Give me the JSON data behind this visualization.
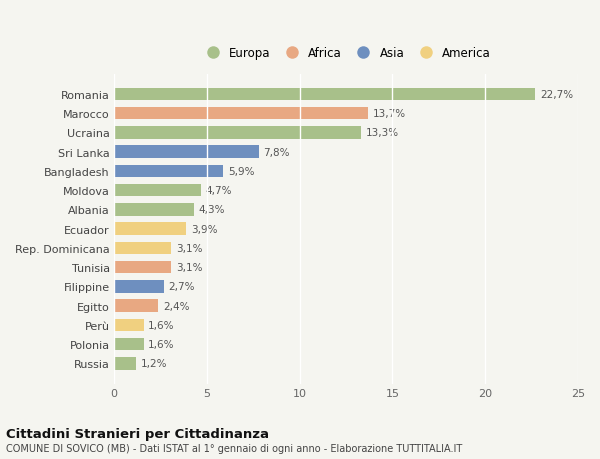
{
  "categories": [
    "Romania",
    "Marocco",
    "Ucraina",
    "Sri Lanka",
    "Bangladesh",
    "Moldova",
    "Albania",
    "Ecuador",
    "Rep. Dominicana",
    "Tunisia",
    "Filippine",
    "Egitto",
    "Perù",
    "Polonia",
    "Russia"
  ],
  "values": [
    22.7,
    13.7,
    13.3,
    7.8,
    5.9,
    4.7,
    4.3,
    3.9,
    3.1,
    3.1,
    2.7,
    2.4,
    1.6,
    1.6,
    1.2
  ],
  "labels": [
    "22,7%",
    "13,7%",
    "13,3%",
    "7,8%",
    "5,9%",
    "4,7%",
    "4,3%",
    "3,9%",
    "3,1%",
    "3,1%",
    "2,7%",
    "2,4%",
    "1,6%",
    "1,6%",
    "1,2%"
  ],
  "continents": [
    "Europa",
    "Africa",
    "Europa",
    "Asia",
    "Asia",
    "Europa",
    "Europa",
    "America",
    "America",
    "Africa",
    "Asia",
    "Africa",
    "America",
    "Europa",
    "Europa"
  ],
  "continent_colors": {
    "Europa": "#a8c08a",
    "Africa": "#e8a882",
    "Asia": "#6e8fbf",
    "America": "#f0d080"
  },
  "legend_order": [
    "Europa",
    "Africa",
    "Asia",
    "America"
  ],
  "title": "Cittadini Stranieri per Cittadinanza",
  "subtitle": "COMUNE DI SOVICO (MB) - Dati ISTAT al 1° gennaio di ogni anno - Elaborazione TUTTITALIA.IT",
  "xlim": [
    0,
    25
  ],
  "xticks": [
    0,
    5,
    10,
    15,
    20,
    25
  ],
  "background_color": "#f5f5f0",
  "grid_color": "#ffffff",
  "bar_height": 0.65
}
